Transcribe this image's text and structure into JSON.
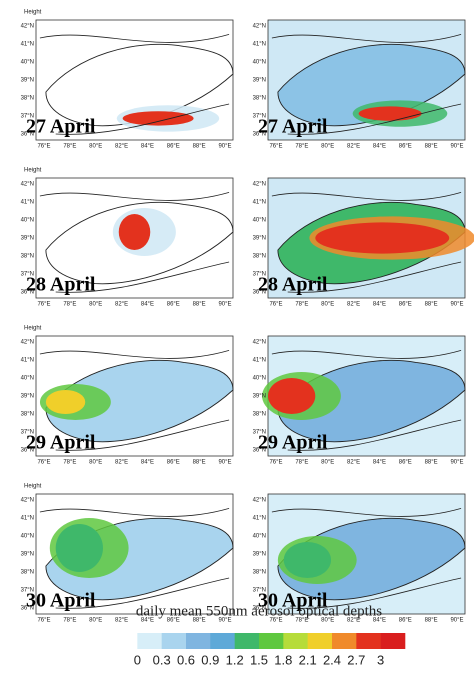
{
  "panels": [
    {
      "label": "27 April",
      "header": "Height"
    },
    {
      "label": "27 April"
    },
    {
      "label": "28 April",
      "header": "Height"
    },
    {
      "label": "28 April"
    },
    {
      "label": "29 April",
      "header": "Height"
    },
    {
      "label": "29 April"
    },
    {
      "label": "30 April",
      "header": "Height"
    },
    {
      "label": "30 April"
    }
  ],
  "lat_labels": [
    "42°N",
    "41°N",
    "40°N",
    "39°N",
    "38°N",
    "37°N",
    "36°N"
  ],
  "lon_labels": [
    "76°E",
    "78°E",
    "80°E",
    "82°E",
    "84°E",
    "86°E",
    "88°E",
    "90°E"
  ],
  "colorbar": {
    "title": "daily mean 550nm aerosol optical depths",
    "ticks": [
      0,
      0.3,
      0.6,
      0.9,
      1.2,
      1.5,
      1.8,
      2.1,
      2.4,
      2.7,
      3
    ],
    "colors": [
      "#ffffff",
      "#d7eef8",
      "#a9d4ee",
      "#7fb5e0",
      "#5ea9d8",
      "#3fb86a",
      "#5fc83f",
      "#b6dc3a",
      "#f0cf2a",
      "#f08a2a",
      "#e3321e",
      "#d91e1e"
    ]
  }
}
